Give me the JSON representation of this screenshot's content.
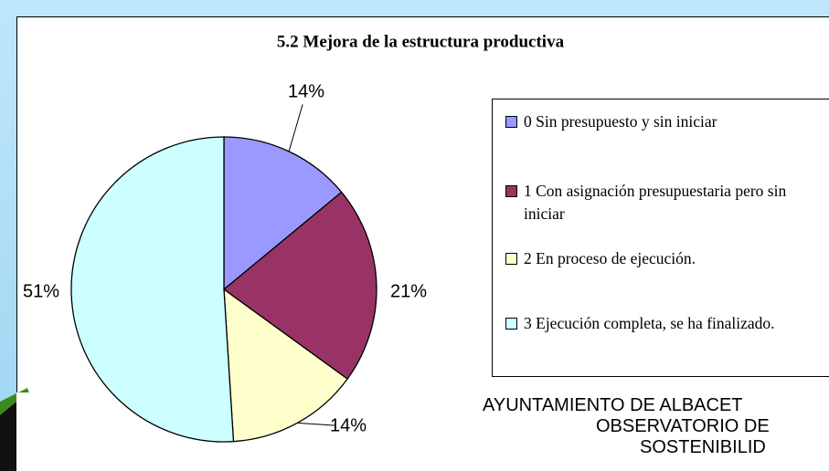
{
  "chart_data": {
    "type": "pie",
    "title": "5.2 Mejora de la estructura productiva",
    "categories": [
      "0 Sin presupuesto y sin iniciar",
      "1 Con asignación presupuestaria pero sin iniciar",
      "2 En proceso de ejecución.",
      "3 Ejecución completa, se ha finalizado."
    ],
    "values": [
      14,
      21,
      14,
      51
    ],
    "value_labels": [
      "14%",
      "21%",
      "14%",
      "51%"
    ],
    "colors": [
      "#9999ff",
      "#993366",
      "#ffffcc",
      "#ccffff"
    ],
    "legend": "right"
  },
  "footer": [
    "AYUNTAMIENTO DE ALBACET",
    "OBSERVATORIO DE",
    "SOSTENIBILID"
  ]
}
